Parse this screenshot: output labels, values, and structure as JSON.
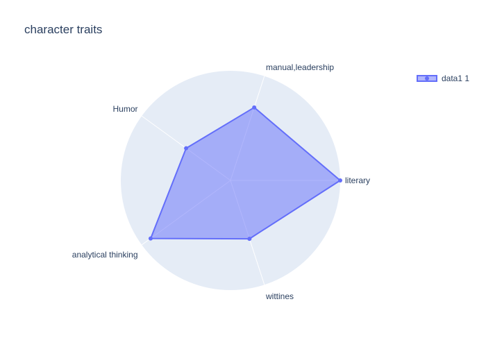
{
  "chart_data": {
    "type": "radar",
    "title": "character traits",
    "categories": [
      "literary",
      "manual,leadership",
      "Humor",
      "analytical thinking",
      "wittines"
    ],
    "series": [
      {
        "name": "data1 1",
        "values": [
          5,
          3.5,
          2.5,
          4.5,
          2.8
        ]
      }
    ],
    "rlim": [
      0,
      5
    ],
    "legend_position": "top-right",
    "colors": {
      "line": "#636efa",
      "fill": "#636efa",
      "polar_background": "#e5ecf6",
      "gridline": "#ffffff",
      "text": "#2a3f5f"
    }
  }
}
